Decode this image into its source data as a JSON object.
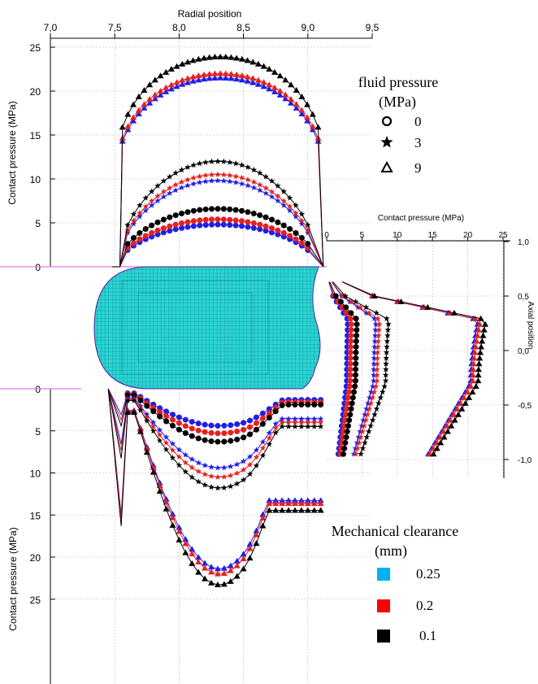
{
  "chart_data": {
    "type": "scatter",
    "colors": {
      "mesh": "#2ad4d4",
      "c_0_25": "#1f1fe6",
      "c_0_2": "#e62020",
      "c_0_1": "#000000"
    },
    "axes": {
      "top_x": {
        "label": "Radial position",
        "ticks": [
          "7,0",
          "7,5",
          "8,0",
          "8,5",
          "9,0",
          "9,5"
        ],
        "range": [
          7.0,
          9.5
        ]
      },
      "upper_y": {
        "label": "Contact pressure (MPa)",
        "ticks": [
          "0",
          "5",
          "10",
          "15",
          "20",
          "25"
        ],
        "range": [
          0,
          25
        ]
      },
      "lower_y": {
        "label": "Contact pressure (MPa)",
        "ticks": [
          "0",
          "5",
          "10",
          "15",
          "20",
          "25"
        ],
        "range": [
          0,
          25
        ],
        "reversed": true
      },
      "right_x": {
        "label": "Contact pressure (MPa)",
        "ticks": [
          "0",
          "5",
          "10",
          "15",
          "20",
          "25"
        ],
        "range": [
          0,
          25
        ]
      },
      "right_y": {
        "label": "Axial position",
        "ticks": [
          "1,0",
          "0,5",
          "0,0",
          "-0,5",
          "-1,0"
        ],
        "range": [
          -1.0,
          1.0
        ]
      }
    },
    "grid": true,
    "legend_fluid": {
      "title_line1": "fluid pressure",
      "title_line2": "(MPa)",
      "entries": [
        {
          "marker": "circle",
          "label": "0"
        },
        {
          "marker": "star",
          "label": "3"
        },
        {
          "marker": "triangle",
          "label": "9"
        }
      ],
      "position": "top-right"
    },
    "legend_clearance": {
      "title_line1": "Mechanical clearance",
      "title_line2": "(mm)",
      "entries": [
        {
          "color": "#00b0f0",
          "label": "0.25"
        },
        {
          "color": "#ff0000",
          "label": "0.2"
        },
        {
          "color": "#000000",
          "label": "0.1"
        }
      ],
      "position": "bottom-right"
    },
    "series_profiles": {
      "radial_x": [
        7.52,
        7.6,
        7.75,
        7.9,
        8.05,
        8.2,
        8.35,
        8.5,
        8.65,
        8.8,
        8.95,
        9.1
      ],
      "upper_peaks": {
        "0": {
          "c0.25": 4.8,
          "c0.2": 5.4,
          "c0.1": 6.6
        },
        "3": {
          "c0.25": 9.8,
          "c0.2": 10.5,
          "c0.1": 12.0
        },
        "9": {
          "c0.25": 21.5,
          "c0.2": 22.0,
          "c0.1": 23.9
        }
      },
      "lower_peaks": {
        "0": {
          "c0.25": 4.4,
          "c0.2": 5.3,
          "c0.1": 6.3
        },
        "3": {
          "c0.25": 9.4,
          "c0.2": 10.5,
          "c0.1": 11.8
        },
        "9": {
          "c0.25": 21.4,
          "c0.2": 22.0,
          "c0.1": 23.3
        }
      },
      "right_peaks": {
        "0": {
          "c0.25": 3.0,
          "c0.2": 3.5,
          "c0.1": 4.3
        },
        "3": {
          "c0.25": 7.0,
          "c0.2": 7.5,
          "c0.1": 8.8
        },
        "9": {
          "c0.25": 21.5,
          "c0.2": 21.8,
          "c0.1": 22.6
        }
      }
    }
  }
}
